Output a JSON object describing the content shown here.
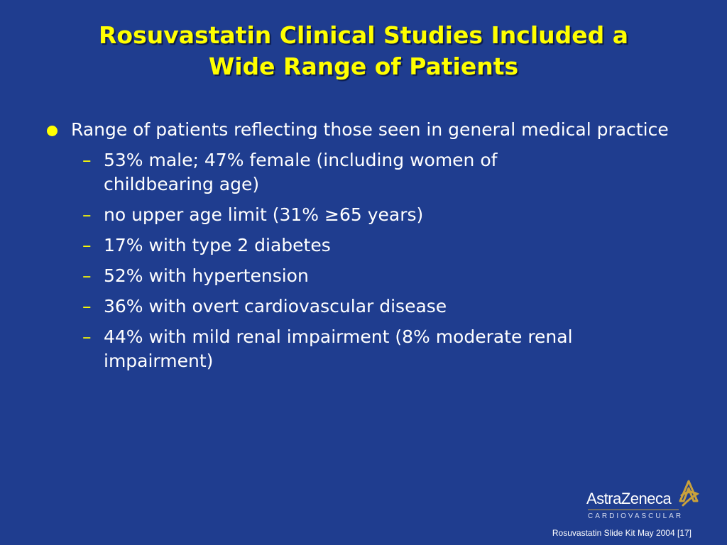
{
  "slide": {
    "title_line1": "Rosuvastatin Clinical Studies Included a",
    "title_line2": "Wide Range of Patients",
    "bullet": {
      "text": "Range of patients reflecting those seen in general medical practice",
      "sub_items": [
        "53% male; 47% female (including women of childbearing age)",
        "no upper age limit (31% ≥65 years)",
        "17% with type 2 diabetes",
        "52% with hypertension",
        "36% with overt cardiovascular disease",
        "44% with mild renal impairment (8% moderate renal impairment)"
      ]
    },
    "logo": {
      "name": "AstraZeneca",
      "subtitle": "CARDIOVASCULAR"
    },
    "footer": "Rosuvastatin Slide Kit May 2004 [17]"
  },
  "colors": {
    "background": "#1f3d8f",
    "title": "#ffff00",
    "bullet_marker": "#ffff00",
    "body_text": "#ffffff",
    "logo_accent": "#c9a13b"
  }
}
